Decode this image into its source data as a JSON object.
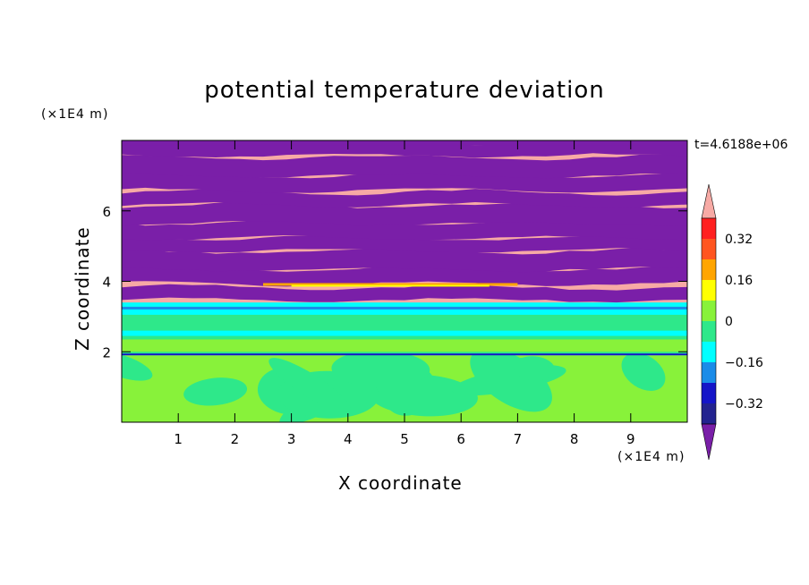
{
  "chart_data": {
    "type": "heatmap",
    "title": "potential temperature deviation",
    "xlabel": "X coordinate",
    "ylabel": "Z coordinate",
    "x_unit_label": "(×1E4 m)",
    "y_unit_label": "(×1E4 m)",
    "time_label": "t=4.6188e+06",
    "xlim": [
      0,
      10
    ],
    "ylim": [
      0,
      8
    ],
    "x_ticks": [
      "1",
      "2",
      "3",
      "4",
      "5",
      "6",
      "7",
      "8",
      "9"
    ],
    "y_ticks": [
      "2",
      "4",
      "6"
    ],
    "colorbar": {
      "labels": [
        "0.32",
        "0.16",
        "0",
        "−0.16",
        "−0.32"
      ],
      "levels": [
        -0.4,
        -0.32,
        -0.24,
        -0.16,
        -0.08,
        0,
        0.08,
        0.16,
        0.24,
        0.32,
        0.4
      ],
      "colors": [
        "#7a1fa8",
        "#23238f",
        "#1515c8",
        "#1a8ce8",
        "#00ffff",
        "#2ee88a",
        "#88f23a",
        "#ffff00",
        "#ffa500",
        "#ff5520",
        "#ff2020",
        "#f7aaa5"
      ]
    },
    "layers": [
      {
        "z": [
          0,
          1.9
        ],
        "description_values": "mostly 0 to 0.08 with slightly negative swirls",
        "values": [
          0.04,
          -0.02
        ]
      },
      {
        "z": [
          1.9,
          3.4
        ],
        "values": [
          -0.04,
          -0.12
        ]
      },
      {
        "z": [
          3.4,
          8
        ],
        "values": [
          0.4,
          -0.4
        ]
      }
    ]
  }
}
